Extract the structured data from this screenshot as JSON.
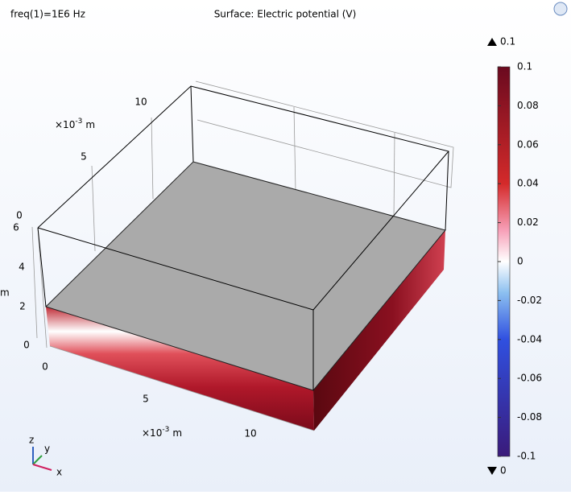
{
  "header": {
    "parameter": "freq(1)=1E6 Hz",
    "title": "Surface: Electric potential (V)"
  },
  "axes": {
    "y_axis": {
      "ticks": [
        "10",
        "5",
        "0"
      ],
      "unit": {
        "base": "×10",
        "exp": "-3",
        "unit": "m"
      }
    },
    "z_axis": {
      "ticks": [
        "6",
        "4",
        "2",
        "0"
      ],
      "unit": "m"
    },
    "x_axis": {
      "ticks": [
        "0",
        "5",
        "10"
      ],
      "unit": {
        "base": "×10",
        "exp": "-3",
        "unit": "m"
      }
    }
  },
  "colorbar": {
    "max_label": "0.1",
    "min_label": "0",
    "ticks": [
      "0.1",
      "0.08",
      "0.06",
      "0.04",
      "0.02",
      "0",
      "-0.02",
      "-0.04",
      "-0.06",
      "-0.08",
      "-0.1"
    ]
  },
  "triad": {
    "x": "x",
    "y": "y",
    "z": "z"
  }
}
